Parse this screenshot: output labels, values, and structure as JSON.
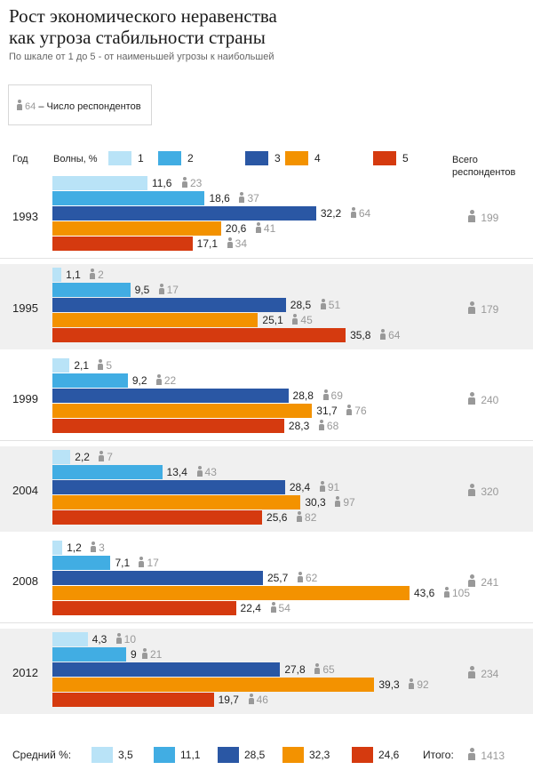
{
  "title_line1": "Рост экономического неравенства",
  "title_line2": "как угроза стабильности страны",
  "subtitle": "По шкале от 1 до 5 - от наименьшей угрозы к наибольшей",
  "legend_note": {
    "sample_value": "64",
    "text": "– Число респондентов"
  },
  "headers": {
    "year": "Год",
    "waves": "Волны, %",
    "total_line1": "Всего",
    "total_line2": "респондентов"
  },
  "colors": [
    "#b9e3f7",
    "#41ade3",
    "#2a57a4",
    "#f39200",
    "#d53a0f"
  ],
  "chart_data": {
    "type": "bar",
    "orientation": "horizontal",
    "title": "Рост экономического неравенства как угроза стабильности страны",
    "series_names": [
      "1",
      "2",
      "3",
      "4",
      "5"
    ],
    "unit": "%",
    "groups": [
      {
        "year": "1993",
        "values": [
          "11,6",
          "18,6",
          "32,2",
          "20,6",
          "17,1"
        ],
        "counts": [
          "23",
          "37",
          "64",
          "41",
          "34"
        ],
        "total": "199"
      },
      {
        "year": "1995",
        "values": [
          "1,1",
          "9,5",
          "28,5",
          "25,1",
          "35,8"
        ],
        "counts": [
          "2",
          "17",
          "51",
          "45",
          "64"
        ],
        "total": "179"
      },
      {
        "year": "1999",
        "values": [
          "2,1",
          "9,2",
          "28,8",
          "31,7",
          "28,3"
        ],
        "counts": [
          "5",
          "22",
          "69",
          "76",
          "68"
        ],
        "total": "240"
      },
      {
        "year": "2004",
        "values": [
          "2,2",
          "13,4",
          "28,4",
          "30,3",
          "25,6"
        ],
        "counts": [
          "7",
          "43",
          "91",
          "97",
          "82"
        ],
        "total": "320"
      },
      {
        "year": "2008",
        "values": [
          "1,2",
          "7,1",
          "25,7",
          "43,6",
          "22,4"
        ],
        "counts": [
          "3",
          "17",
          "62",
          "105",
          "54"
        ],
        "total": "241"
      },
      {
        "year": "2012",
        "values": [
          "4,3",
          "9",
          "27,8",
          "39,3",
          "19,7"
        ],
        "counts": [
          "10",
          "21",
          "65",
          "92",
          "46"
        ],
        "total": "234"
      }
    ],
    "average": {
      "label": "Средний %:",
      "values": [
        "3,5",
        "11,1",
        "28,5",
        "32,3",
        "24,6"
      ]
    },
    "overall": {
      "label": "Итого:",
      "value": "1413"
    }
  }
}
